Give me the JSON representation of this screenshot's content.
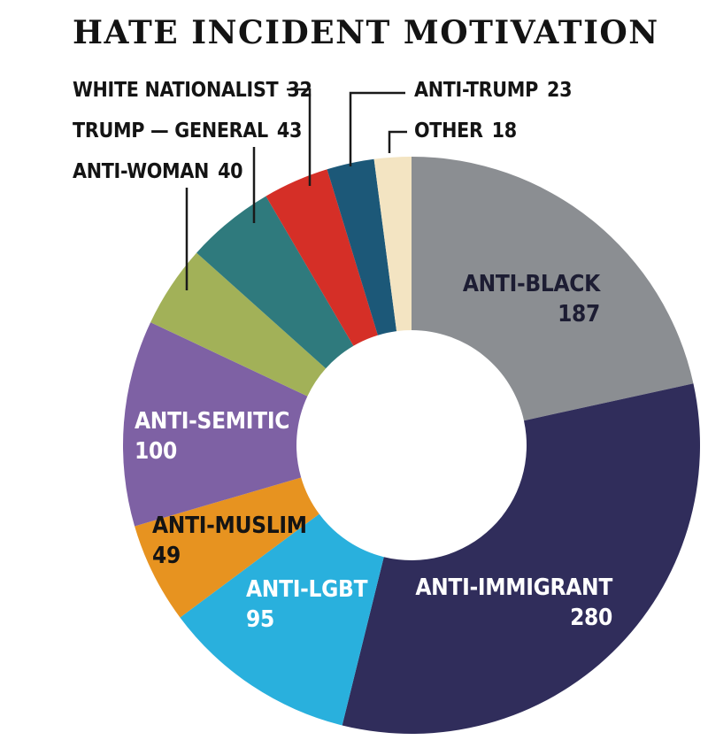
{
  "title": "HATE INCIDENT MOTIVATION",
  "colors": {
    "background": "#ffffff",
    "title_text": "#131313",
    "leader_line": "#1a1a1a",
    "donut_hole": "#ffffff"
  },
  "chart_data": {
    "type": "pie",
    "subtype": "donut",
    "title": "HATE INCIDENT MOTIVATION",
    "total": 867,
    "start_angle_deg": 0,
    "direction": "clockwise",
    "inner_radius_ratio": 0.4,
    "legend_position": "none",
    "segments": [
      {
        "label": "ANTI-BLACK",
        "value": 187,
        "color": "#8b8e92",
        "label_style": "inside",
        "label_text_color": "#1d1d33"
      },
      {
        "label": "ANTI-IMMIGRANT",
        "value": 280,
        "color": "#302d5b",
        "label_style": "inside",
        "label_text_color": "#ffffff"
      },
      {
        "label": "ANTI-LGBT",
        "value": 95,
        "color": "#29b0dd",
        "label_style": "inside",
        "label_text_color": "#ffffff"
      },
      {
        "label": "ANTI-MUSLIM",
        "value": 49,
        "color": "#e79320",
        "label_style": "inside",
        "label_text_color": "#141414"
      },
      {
        "label": "ANTI-SEMITIC",
        "value": 100,
        "color": "#7e61a4",
        "label_style": "inside",
        "label_text_color": "#ffffff"
      },
      {
        "label": "ANTI-WOMAN",
        "value": 40,
        "color": "#a2b158",
        "label_style": "callout"
      },
      {
        "label": "TRUMP — GENERAL",
        "value": 43,
        "color": "#2f7a7d",
        "label_style": "callout"
      },
      {
        "label": "WHITE NATIONALIST",
        "value": 32,
        "color": "#d52f27",
        "label_style": "callout"
      },
      {
        "label": "ANTI-TRUMP",
        "value": 23,
        "color": "#1c5878",
        "label_style": "callout"
      },
      {
        "label": "OTHER",
        "value": 18,
        "color": "#f3e4c2",
        "label_style": "callout"
      }
    ]
  }
}
